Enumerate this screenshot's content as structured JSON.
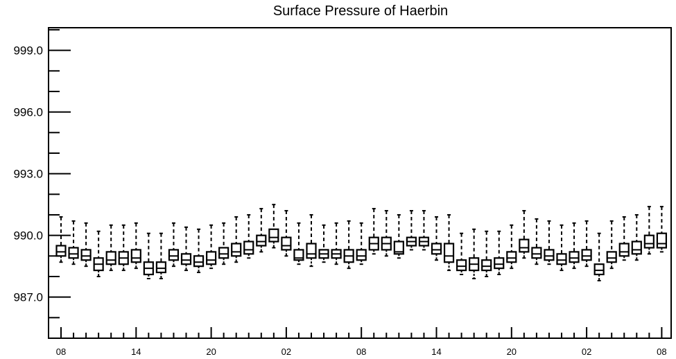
{
  "chart_data": {
    "type": "box",
    "title": "Surface Pressure of Haerbin",
    "xlabel": "",
    "ylabel": "",
    "ylim": [
      985.0,
      1000.1
    ],
    "yticks": [
      987.0,
      990.0,
      993.0,
      996.0,
      999.0
    ],
    "ytick_labels": [
      "987.0",
      "990.0",
      "993.0",
      "996.0",
      "999.0"
    ],
    "xtick_labels": [
      "08",
      "14",
      "20",
      "02",
      "08",
      "14",
      "20",
      "02",
      "08"
    ],
    "xtick_positions": [
      0,
      6,
      12,
      18,
      24,
      30,
      36,
      42,
      48
    ],
    "grid": false,
    "boxes": [
      {
        "x": 0,
        "whisker_low": 988.7,
        "q1": 989.0,
        "median": 989.2,
        "q3": 989.5,
        "whisker_high": 990.9
      },
      {
        "x": 1,
        "whisker_low": 988.6,
        "q1": 988.9,
        "median": 989.1,
        "q3": 989.4,
        "whisker_high": 990.7
      },
      {
        "x": 2,
        "whisker_low": 988.5,
        "q1": 988.8,
        "median": 989.0,
        "q3": 989.3,
        "whisker_high": 990.6
      },
      {
        "x": 3,
        "whisker_low": 988.0,
        "q1": 988.3,
        "median": 988.6,
        "q3": 988.9,
        "whisker_high": 990.2
      },
      {
        "x": 4,
        "whisker_low": 988.3,
        "q1": 988.6,
        "median": 988.8,
        "q3": 989.2,
        "whisker_high": 990.5
      },
      {
        "x": 5,
        "whisker_low": 988.3,
        "q1": 988.6,
        "median": 988.9,
        "q3": 989.2,
        "whisker_high": 990.5
      },
      {
        "x": 6,
        "whisker_low": 988.4,
        "q1": 988.7,
        "median": 988.9,
        "q3": 989.3,
        "whisker_high": 990.6
      },
      {
        "x": 7,
        "whisker_low": 987.9,
        "q1": 988.1,
        "median": 988.4,
        "q3": 988.7,
        "whisker_high": 990.1
      },
      {
        "x": 8,
        "whisker_low": 987.9,
        "q1": 988.2,
        "median": 988.4,
        "q3": 988.7,
        "whisker_high": 990.1
      },
      {
        "x": 9,
        "whisker_low": 988.5,
        "q1": 988.8,
        "median": 989.0,
        "q3": 989.3,
        "whisker_high": 990.6
      },
      {
        "x": 10,
        "whisker_low": 988.3,
        "q1": 988.6,
        "median": 988.8,
        "q3": 989.1,
        "whisker_high": 990.4
      },
      {
        "x": 11,
        "whisker_low": 988.2,
        "q1": 988.5,
        "median": 988.7,
        "q3": 989.0,
        "whisker_high": 990.3
      },
      {
        "x": 12,
        "whisker_low": 988.4,
        "q1": 988.6,
        "median": 988.8,
        "q3": 989.2,
        "whisker_high": 990.5
      },
      {
        "x": 13,
        "whisker_low": 988.6,
        "q1": 988.9,
        "median": 989.1,
        "q3": 989.4,
        "whisker_high": 990.6
      },
      {
        "x": 14,
        "whisker_low": 988.7,
        "q1": 989.0,
        "median": 989.2,
        "q3": 989.6,
        "whisker_high": 990.9
      },
      {
        "x": 15,
        "whisker_low": 988.9,
        "q1": 989.1,
        "median": 989.3,
        "q3": 989.7,
        "whisker_high": 991.0
      },
      {
        "x": 16,
        "whisker_low": 989.2,
        "q1": 989.5,
        "median": 989.7,
        "q3": 990.0,
        "whisker_high": 991.3
      },
      {
        "x": 17,
        "whisker_low": 989.4,
        "q1": 989.7,
        "median": 989.9,
        "q3": 990.3,
        "whisker_high": 991.5
      },
      {
        "x": 18,
        "whisker_low": 989.0,
        "q1": 989.3,
        "median": 989.5,
        "q3": 989.9,
        "whisker_high": 991.2
      },
      {
        "x": 19,
        "whisker_low": 988.6,
        "q1": 988.8,
        "median": 988.9,
        "q3": 989.3,
        "whisker_high": 990.6
      },
      {
        "x": 20,
        "whisker_low": 988.5,
        "q1": 988.9,
        "median": 989.1,
        "q3": 989.6,
        "whisker_high": 991.0
      },
      {
        "x": 21,
        "whisker_low": 988.7,
        "q1": 988.9,
        "median": 989.1,
        "q3": 989.3,
        "whisker_high": 990.5
      },
      {
        "x": 22,
        "whisker_low": 988.6,
        "q1": 988.9,
        "median": 989.1,
        "q3": 989.3,
        "whisker_high": 990.6
      },
      {
        "x": 23,
        "whisker_low": 988.4,
        "q1": 988.7,
        "median": 989.0,
        "q3": 989.3,
        "whisker_high": 990.7
      },
      {
        "x": 24,
        "whisker_low": 988.6,
        "q1": 988.8,
        "median": 989.0,
        "q3": 989.3,
        "whisker_high": 990.6
      },
      {
        "x": 25,
        "whisker_low": 989.1,
        "q1": 989.3,
        "median": 989.6,
        "q3": 989.9,
        "whisker_high": 991.3
      },
      {
        "x": 26,
        "whisker_low": 989.0,
        "q1": 989.3,
        "median": 989.6,
        "q3": 989.9,
        "whisker_high": 991.2
      },
      {
        "x": 27,
        "whisker_low": 988.9,
        "q1": 989.1,
        "median": 989.2,
        "q3": 989.7,
        "whisker_high": 991.0
      },
      {
        "x": 28,
        "whisker_low": 989.3,
        "q1": 989.5,
        "median": 989.7,
        "q3": 989.9,
        "whisker_high": 991.2
      },
      {
        "x": 29,
        "whisker_low": 989.3,
        "q1": 989.5,
        "median": 989.7,
        "q3": 989.9,
        "whisker_high": 991.2
      },
      {
        "x": 30,
        "whisker_low": 988.8,
        "q1": 989.1,
        "median": 989.3,
        "q3": 989.6,
        "whisker_high": 990.9
      },
      {
        "x": 31,
        "whisker_low": 988.3,
        "q1": 988.7,
        "median": 989.0,
        "q3": 989.6,
        "whisker_high": 991.0
      },
      {
        "x": 32,
        "whisker_low": 988.1,
        "q1": 988.3,
        "median": 988.5,
        "q3": 988.8,
        "whisker_high": 990.1
      },
      {
        "x": 33,
        "whisker_low": 987.9,
        "q1": 988.3,
        "median": 988.6,
        "q3": 988.9,
        "whisker_high": 990.3
      },
      {
        "x": 34,
        "whisker_low": 988.0,
        "q1": 988.3,
        "median": 988.5,
        "q3": 988.8,
        "whisker_high": 990.2
      },
      {
        "x": 35,
        "whisker_low": 988.1,
        "q1": 988.4,
        "median": 988.6,
        "q3": 988.9,
        "whisker_high": 990.2
      },
      {
        "x": 36,
        "whisker_low": 988.4,
        "q1": 988.7,
        "median": 988.9,
        "q3": 989.2,
        "whisker_high": 990.5
      },
      {
        "x": 37,
        "whisker_low": 988.9,
        "q1": 989.2,
        "median": 989.4,
        "q3": 989.8,
        "whisker_high": 991.2
      },
      {
        "x": 38,
        "whisker_low": 988.6,
        "q1": 988.9,
        "median": 989.1,
        "q3": 989.4,
        "whisker_high": 990.8
      },
      {
        "x": 39,
        "whisker_low": 988.6,
        "q1": 988.8,
        "median": 989.0,
        "q3": 989.3,
        "whisker_high": 990.7
      },
      {
        "x": 40,
        "whisker_low": 988.3,
        "q1": 988.6,
        "median": 988.8,
        "q3": 989.1,
        "whisker_high": 990.5
      },
      {
        "x": 41,
        "whisker_low": 988.4,
        "q1": 988.7,
        "median": 988.9,
        "q3": 989.2,
        "whisker_high": 990.6
      },
      {
        "x": 42,
        "whisker_low": 988.5,
        "q1": 988.8,
        "median": 989.0,
        "q3": 989.3,
        "whisker_high": 990.7
      },
      {
        "x": 43,
        "whisker_low": 987.8,
        "q1": 988.1,
        "median": 988.3,
        "q3": 988.6,
        "whisker_high": 990.1
      },
      {
        "x": 44,
        "whisker_low": 988.4,
        "q1": 988.7,
        "median": 988.9,
        "q3": 989.2,
        "whisker_high": 990.7
      },
      {
        "x": 45,
        "whisker_low": 988.8,
        "q1": 989.0,
        "median": 989.2,
        "q3": 989.6,
        "whisker_high": 990.9
      },
      {
        "x": 46,
        "whisker_low": 988.8,
        "q1": 989.1,
        "median": 989.3,
        "q3": 989.7,
        "whisker_high": 991.0
      },
      {
        "x": 47,
        "whisker_low": 989.1,
        "q1": 989.4,
        "median": 989.6,
        "q3": 990.0,
        "whisker_high": 991.4
      },
      {
        "x": 48,
        "whisker_low": 989.2,
        "q1": 989.4,
        "median": 989.6,
        "q3": 990.1,
        "whisker_high": 991.4
      }
    ]
  }
}
